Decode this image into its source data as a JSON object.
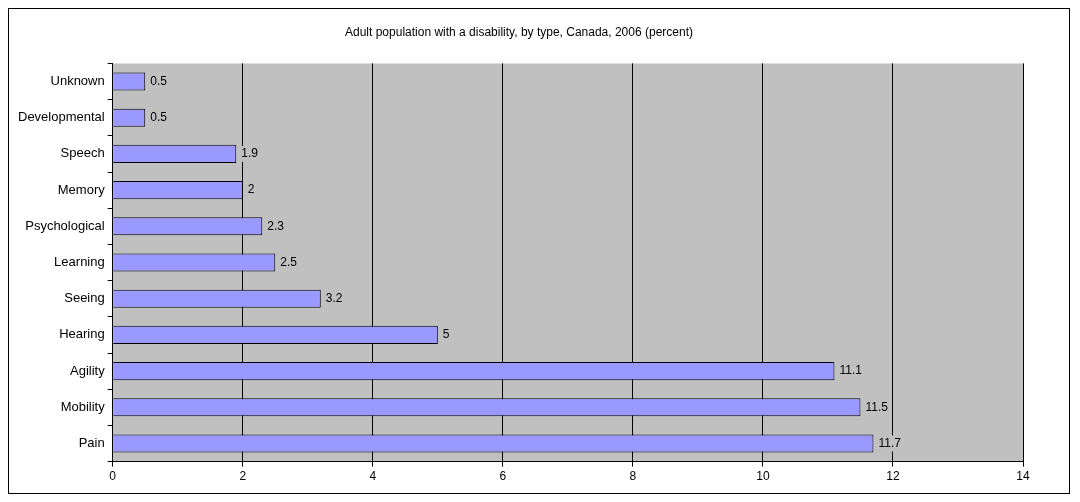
{
  "chart_data": {
    "type": "bar",
    "orientation": "horizontal",
    "title": "Adult population with a disability, by type, Canada, 2006 (percent)",
    "categories": [
      "Unknown",
      "Developmental",
      "Speech",
      "Memory",
      "Psychological",
      "Learning",
      "Seeing",
      "Hearing",
      "Agility",
      "Mobility",
      "Pain"
    ],
    "values": [
      0.5,
      0.5,
      1.9,
      2,
      2.3,
      2.5,
      3.2,
      5,
      11.1,
      11.5,
      11.7
    ],
    "color": "#9999ff",
    "xlim": [
      0,
      14
    ],
    "xticks": [
      0,
      2,
      4,
      6,
      8,
      10,
      12,
      14
    ],
    "grid": "x",
    "data_labels": true,
    "legend": false
  }
}
